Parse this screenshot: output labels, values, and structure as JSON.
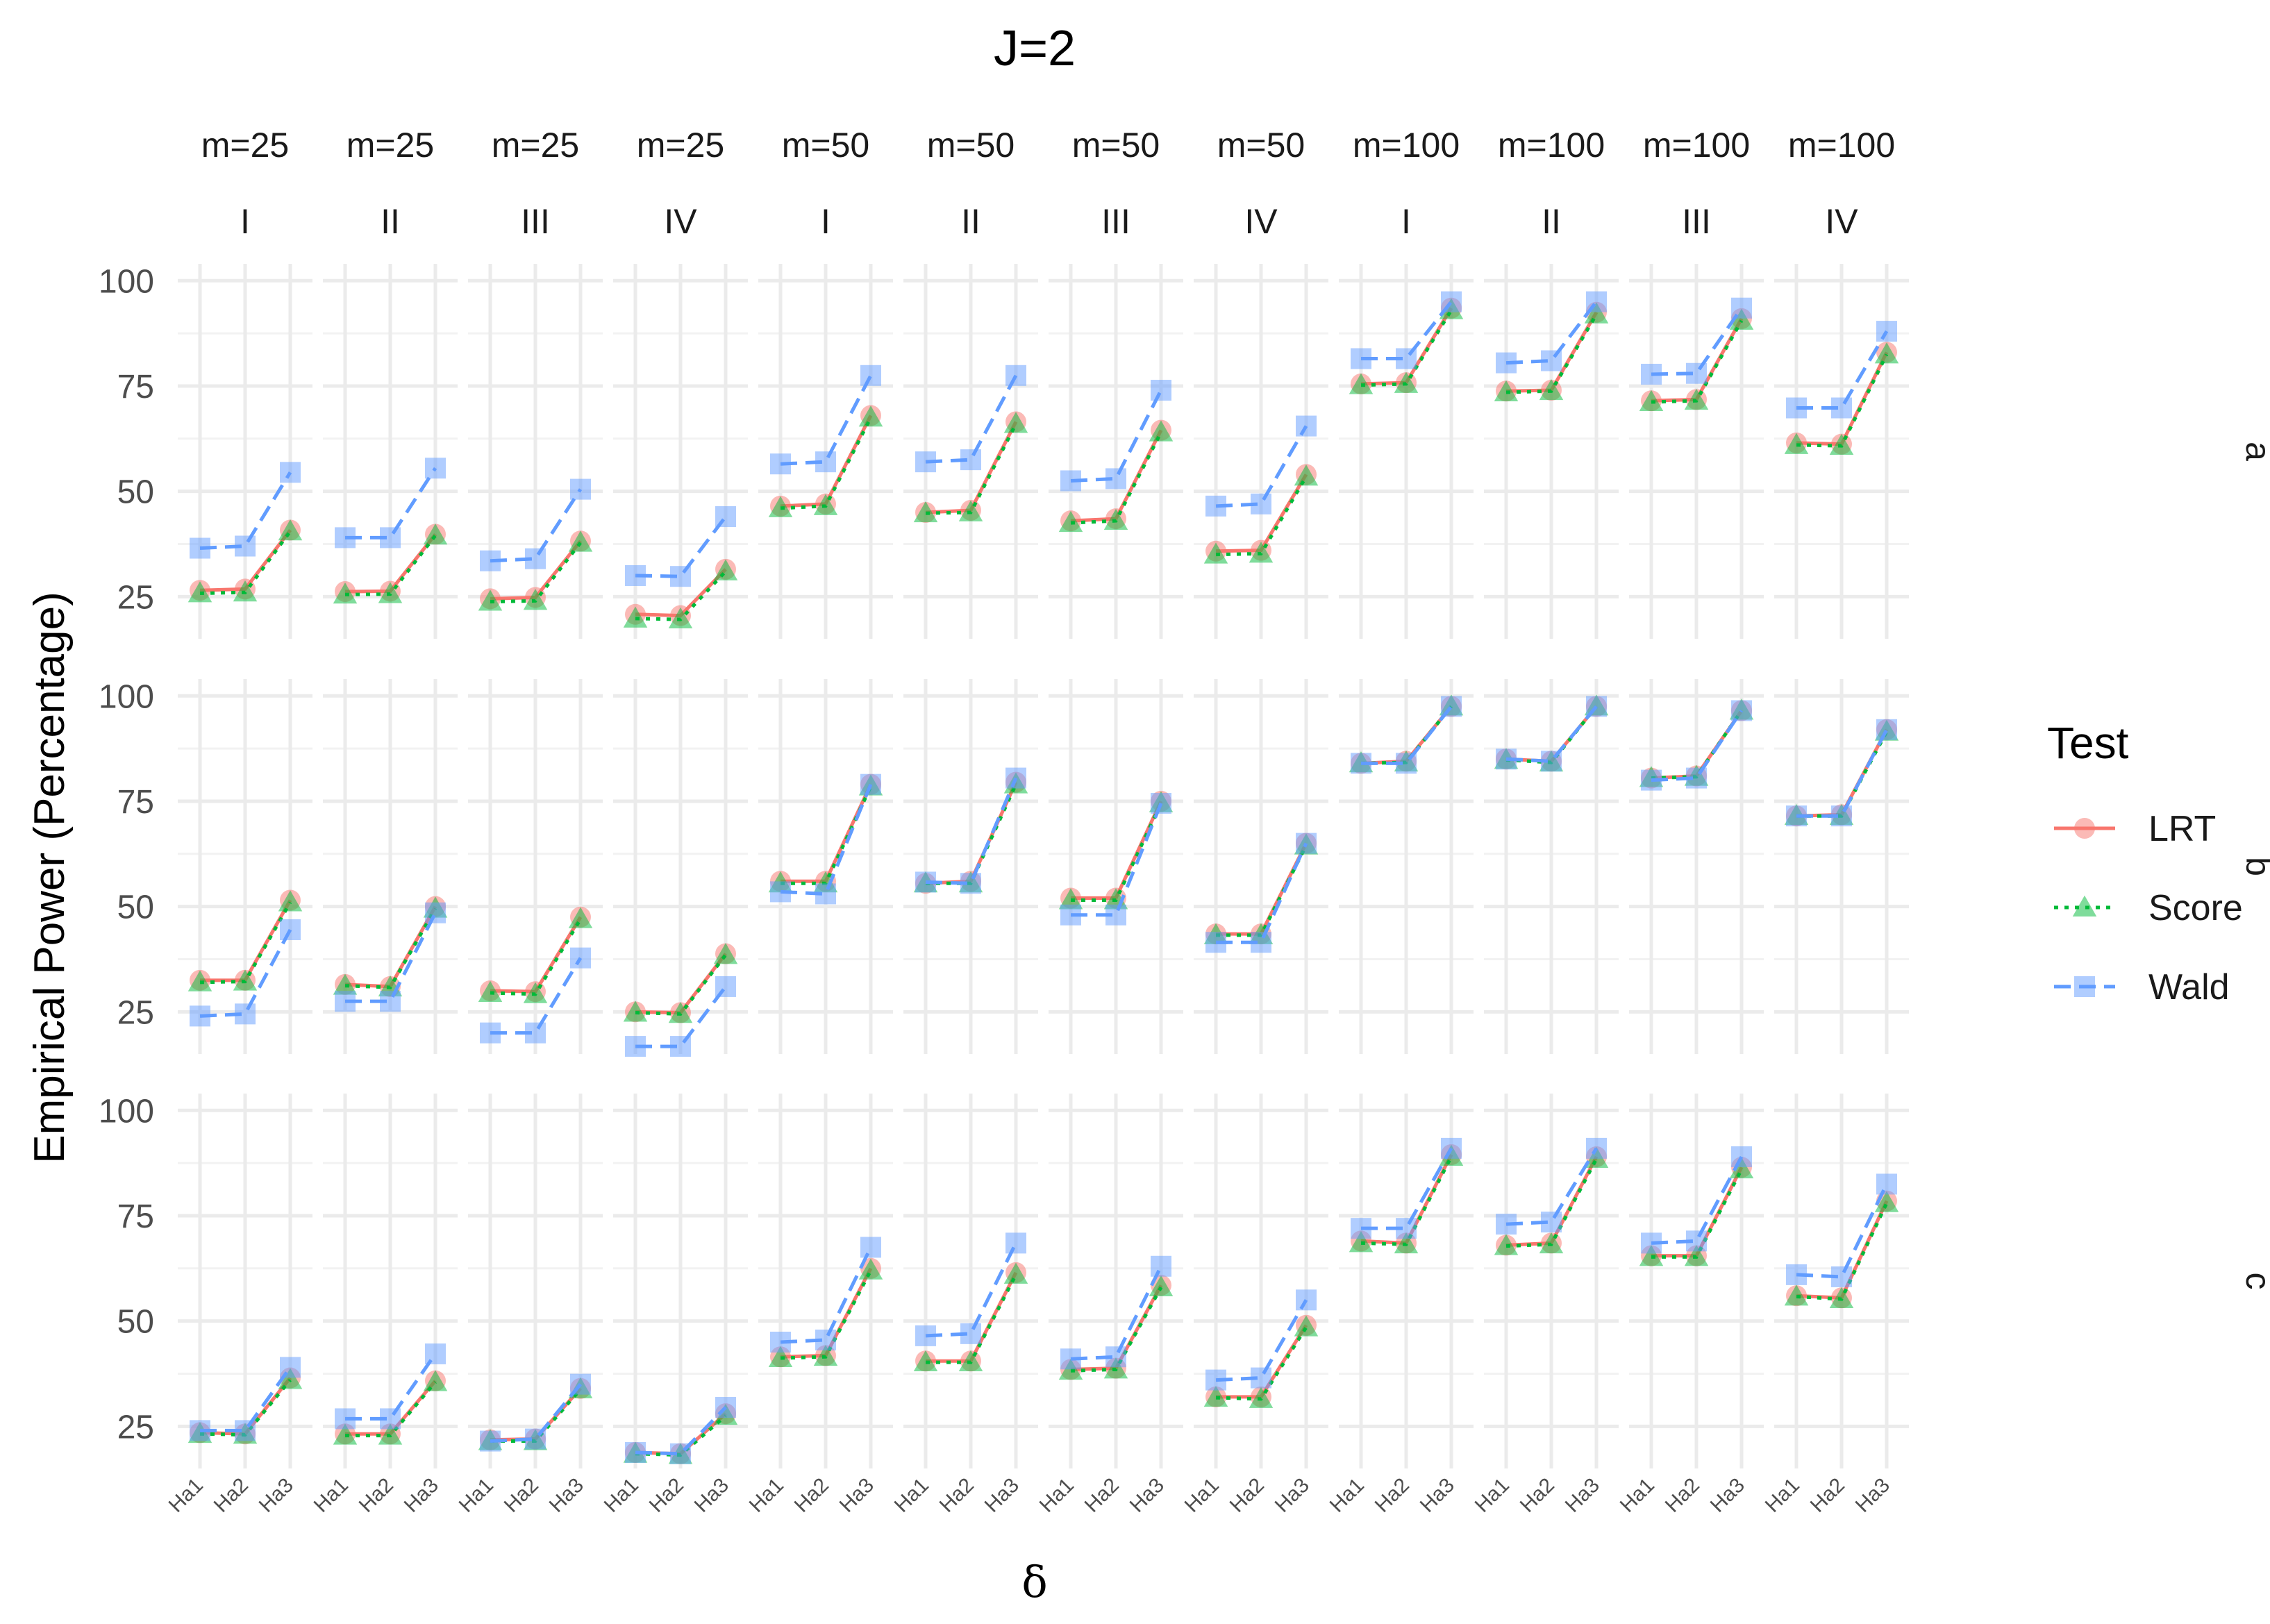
{
  "chart_data": {
    "type": "line",
    "title": "J=2",
    "xlabel": "δ",
    "ylabel": "Empirical Power (Percentage)",
    "x": [
      "Ha1",
      "Ha2",
      "Ha3"
    ],
    "yticks": [
      25,
      50,
      75,
      100
    ],
    "ylim": [
      15,
      104
    ],
    "grid": true,
    "legend": {
      "title": "Test",
      "position": "right",
      "entries": [
        "LRT",
        "Score",
        "Wald"
      ]
    },
    "series_styles": {
      "LRT": {
        "color": "#F8766D",
        "line": "solid",
        "marker": "circle"
      },
      "Score": {
        "color": "#00BA38",
        "line": "dotted",
        "marker": "triangle"
      },
      "Wald": {
        "color": "#619CFF",
        "line": "dashed",
        "marker": "square"
      }
    },
    "column_strips": [
      {
        "m": "m=25",
        "design": "I"
      },
      {
        "m": "m=25",
        "design": "II"
      },
      {
        "m": "m=25",
        "design": "III"
      },
      {
        "m": "m=25",
        "design": "IV"
      },
      {
        "m": "m=50",
        "design": "I"
      },
      {
        "m": "m=50",
        "design": "II"
      },
      {
        "m": "m=50",
        "design": "III"
      },
      {
        "m": "m=50",
        "design": "IV"
      },
      {
        "m": "m=100",
        "design": "I"
      },
      {
        "m": "m=100",
        "design": "II"
      },
      {
        "m": "m=100",
        "design": "III"
      },
      {
        "m": "m=100",
        "design": "IV"
      }
    ],
    "row_strips": [
      "a",
      "b",
      "c"
    ],
    "panels": {
      "a": [
        {
          "LRT": [
            26.5,
            26.8,
            40.8
          ],
          "Score": [
            25.8,
            26.0,
            40.5
          ],
          "Wald": [
            36.5,
            37.0,
            54.5
          ]
        },
        {
          "LRT": [
            26.2,
            26.3,
            39.8
          ],
          "Score": [
            25.5,
            25.6,
            39.5
          ],
          "Wald": [
            39.0,
            39.0,
            55.5
          ]
        },
        {
          "LRT": [
            24.5,
            24.8,
            38.2
          ],
          "Score": [
            23.8,
            24.0,
            37.8
          ],
          "Wald": [
            33.5,
            34.0,
            50.5
          ]
        },
        {
          "LRT": [
            20.8,
            20.5,
            31.5
          ],
          "Score": [
            19.8,
            19.6,
            31.0
          ],
          "Wald": [
            30.0,
            29.8,
            44.0
          ]
        },
        {
          "LRT": [
            46.5,
            47.0,
            68.0
          ],
          "Score": [
            46.0,
            46.5,
            67.5
          ],
          "Wald": [
            56.5,
            57.0,
            77.5
          ]
        },
        {
          "LRT": [
            45.0,
            45.5,
            66.5
          ],
          "Score": [
            44.8,
            45.0,
            66.0
          ],
          "Wald": [
            57.0,
            57.5,
            77.5
          ]
        },
        {
          "LRT": [
            43.0,
            43.5,
            64.5
          ],
          "Score": [
            42.5,
            43.0,
            64.0
          ],
          "Wald": [
            52.5,
            53.0,
            74.0
          ]
        },
        {
          "LRT": [
            35.8,
            36.0,
            54.0
          ],
          "Score": [
            35.0,
            35.2,
            53.5
          ],
          "Wald": [
            46.5,
            47.0,
            65.5
          ]
        },
        {
          "LRT": [
            75.5,
            75.8,
            93.5
          ],
          "Score": [
            75.2,
            75.5,
            93.0
          ],
          "Wald": [
            81.5,
            81.5,
            95.0
          ]
        },
        {
          "LRT": [
            73.8,
            74.0,
            92.5
          ],
          "Score": [
            73.5,
            73.8,
            92.0
          ],
          "Wald": [
            80.5,
            81.0,
            95.0
          ]
        },
        {
          "LRT": [
            71.5,
            71.8,
            91.0
          ],
          "Score": [
            71.2,
            71.5,
            90.5
          ],
          "Wald": [
            77.8,
            78.0,
            93.5
          ]
        },
        {
          "LRT": [
            61.5,
            61.2,
            83.0
          ],
          "Score": [
            61.0,
            60.8,
            82.5
          ],
          "Wald": [
            69.8,
            69.8,
            88.0
          ]
        }
      ],
      "b": [
        {
          "LRT": [
            32.5,
            32.5,
            51.5
          ],
          "Score": [
            32.0,
            32.2,
            51.0
          ],
          "Wald": [
            24.0,
            24.5,
            44.5
          ]
        },
        {
          "LRT": [
            31.5,
            31.0,
            50.0
          ],
          "Score": [
            31.2,
            30.8,
            49.5
          ],
          "Wald": [
            27.5,
            27.5,
            48.5
          ]
        },
        {
          "LRT": [
            30.0,
            29.8,
            47.5
          ],
          "Score": [
            29.5,
            29.2,
            47.0
          ],
          "Wald": [
            20.0,
            20.0,
            37.8
          ]
        },
        {
          "LRT": [
            25.0,
            24.8,
            38.8
          ],
          "Score": [
            24.8,
            24.5,
            38.5
          ],
          "Wald": [
            16.8,
            16.8,
            31.0
          ]
        },
        {
          "LRT": [
            56.0,
            56.0,
            79.0
          ],
          "Score": [
            55.5,
            55.5,
            78.5
          ],
          "Wald": [
            53.5,
            53.0,
            79.0
          ]
        },
        {
          "LRT": [
            55.5,
            56.0,
            79.5
          ],
          "Score": [
            55.5,
            55.5,
            79.0
          ],
          "Wald": [
            55.8,
            55.5,
            80.5
          ]
        },
        {
          "LRT": [
            52.0,
            52.0,
            75.0
          ],
          "Score": [
            51.5,
            51.5,
            74.5
          ],
          "Wald": [
            48.0,
            48.0,
            74.5
          ]
        },
        {
          "LRT": [
            43.5,
            43.5,
            65.0
          ],
          "Score": [
            43.2,
            43.2,
            64.5
          ],
          "Wald": [
            41.5,
            41.5,
            65.0
          ]
        },
        {
          "LRT": [
            84.0,
            84.5,
            97.5
          ],
          "Score": [
            84.0,
            84.2,
            97.5
          ],
          "Wald": [
            84.0,
            84.0,
            97.5
          ]
        },
        {
          "LRT": [
            85.0,
            84.5,
            97.5
          ],
          "Score": [
            84.8,
            84.2,
            97.5
          ],
          "Wald": [
            85.0,
            84.5,
            97.5
          ]
        },
        {
          "LRT": [
            80.5,
            81.0,
            96.5
          ],
          "Score": [
            80.5,
            80.8,
            96.5
          ],
          "Wald": [
            80.0,
            80.5,
            96.5
          ]
        },
        {
          "LRT": [
            71.5,
            71.8,
            92.0
          ],
          "Score": [
            71.5,
            71.5,
            91.5
          ],
          "Wald": [
            71.5,
            71.5,
            92.0
          ]
        }
      ],
      "c": [
        {
          "LRT": [
            23.5,
            23.2,
            36.5
          ],
          "Score": [
            23.2,
            23.0,
            36.0
          ],
          "Wald": [
            24.0,
            24.0,
            39.0
          ]
        },
        {
          "LRT": [
            23.2,
            23.2,
            35.8
          ],
          "Score": [
            22.8,
            22.8,
            35.5
          ],
          "Wald": [
            26.8,
            26.8,
            42.2
          ]
        },
        {
          "LRT": [
            21.8,
            22.0,
            34.0
          ],
          "Score": [
            21.5,
            21.5,
            33.8
          ],
          "Wald": [
            21.5,
            22.0,
            35.0
          ]
        },
        {
          "LRT": [
            18.8,
            18.5,
            28.0
          ],
          "Score": [
            18.5,
            18.2,
            27.5
          ],
          "Wald": [
            18.8,
            18.5,
            29.5
          ]
        },
        {
          "LRT": [
            41.5,
            41.8,
            62.5
          ],
          "Score": [
            41.2,
            41.5,
            62.0
          ],
          "Wald": [
            45.0,
            45.5,
            67.5
          ]
        },
        {
          "LRT": [
            40.5,
            40.5,
            61.5
          ],
          "Score": [
            40.2,
            40.2,
            61.0
          ],
          "Wald": [
            46.5,
            47.0,
            68.5
          ]
        },
        {
          "LRT": [
            38.5,
            38.8,
            58.5
          ],
          "Score": [
            38.2,
            38.5,
            58.0
          ],
          "Wald": [
            41.0,
            41.5,
            63.0
          ]
        },
        {
          "LRT": [
            32.0,
            32.0,
            49.0
          ],
          "Score": [
            31.8,
            31.5,
            48.5
          ],
          "Wald": [
            36.0,
            36.5,
            55.0
          ]
        },
        {
          "LRT": [
            69.0,
            68.5,
            89.5
          ],
          "Score": [
            68.5,
            68.2,
            89.0
          ],
          "Wald": [
            72.0,
            72.0,
            91.0
          ]
        },
        {
          "LRT": [
            68.0,
            68.5,
            89.0
          ],
          "Score": [
            67.8,
            68.2,
            88.5
          ],
          "Wald": [
            73.0,
            73.5,
            91.0
          ]
        },
        {
          "LRT": [
            65.5,
            65.5,
            86.5
          ],
          "Score": [
            65.2,
            65.2,
            86.0
          ],
          "Wald": [
            68.5,
            69.0,
            89.0
          ]
        },
        {
          "LRT": [
            56.0,
            55.5,
            78.5
          ],
          "Score": [
            55.8,
            55.2,
            78.0
          ],
          "Wald": [
            61.0,
            60.5,
            82.5
          ]
        }
      ]
    }
  }
}
